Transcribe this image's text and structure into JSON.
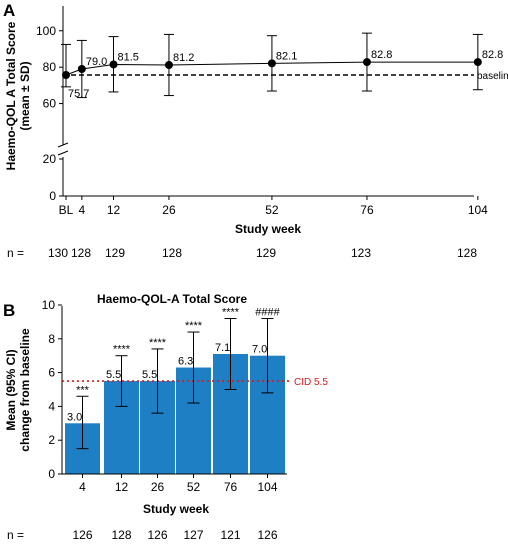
{
  "chart_data": [
    {
      "panel": "A",
      "type": "line",
      "title": "",
      "ylabel": "Haemo-QOL A Total Score\n(mean ± SD)",
      "xlabel": "Study week",
      "x": [
        "BL",
        "4",
        "12",
        "26",
        "52",
        "76",
        "104"
      ],
      "x_values": [
        0,
        4,
        12,
        26,
        52,
        76,
        104
      ],
      "mean": [
        75.7,
        79.0,
        81.5,
        81.2,
        82.1,
        82.8,
        82.8
      ],
      "labels": [
        "75.7",
        "79.0",
        "81.5",
        "81.2",
        "82.1",
        "82.8",
        "82.8"
      ],
      "sd_upper": [
        92.5,
        94.7,
        96.8,
        98.0,
        97.3,
        98.7,
        98.0
      ],
      "sd_lower": [
        59.0,
        63.3,
        66.4,
        64.4,
        66.9,
        66.9,
        67.6
      ],
      "baseline_value": 75.7,
      "baseline_label": "baseline",
      "y_ticks": [
        "100",
        "80",
        "60",
        "20",
        "0"
      ],
      "y_tick_values": [
        100,
        80,
        60,
        20,
        0
      ],
      "axis_break": true,
      "n_label": "n =",
      "n": [
        "130",
        "128",
        "129",
        "128",
        "129",
        "123",
        "128"
      ]
    },
    {
      "panel": "B",
      "type": "bar",
      "title": "Haemo-QOL-A Total Score",
      "ylabel": "Mean (95% CI)\nchange from baseline",
      "xlabel": "Study week",
      "categories": [
        "4",
        "12",
        "26",
        "52",
        "76",
        "104"
      ],
      "values": [
        3.0,
        5.5,
        5.5,
        6.3,
        7.1,
        7.0
      ],
      "labels": [
        "3.0",
        "5.5",
        "5.5",
        "6.3",
        "7.1",
        "7.0"
      ],
      "ci_upper": [
        4.6,
        7.0,
        7.4,
        8.4,
        9.2,
        9.2
      ],
      "ci_lower": [
        1.5,
        4.0,
        3.6,
        4.2,
        5.0,
        4.8
      ],
      "significance": [
        "***",
        "****",
        "****",
        "****",
        "****",
        "####"
      ],
      "ylim": [
        0,
        10
      ],
      "y_ticks": [
        "0",
        "2",
        "4",
        "6",
        "8",
        "10"
      ],
      "reference_line": {
        "value": 5.5,
        "label": "CID 5.5"
      },
      "n_label": "n =",
      "n": [
        "126",
        "128",
        "126",
        "127",
        "121",
        "126"
      ],
      "bar_color": "#1f7fc4",
      "cid_color": "#d7191c"
    }
  ],
  "panels": {
    "a": "A",
    "b": "B"
  }
}
